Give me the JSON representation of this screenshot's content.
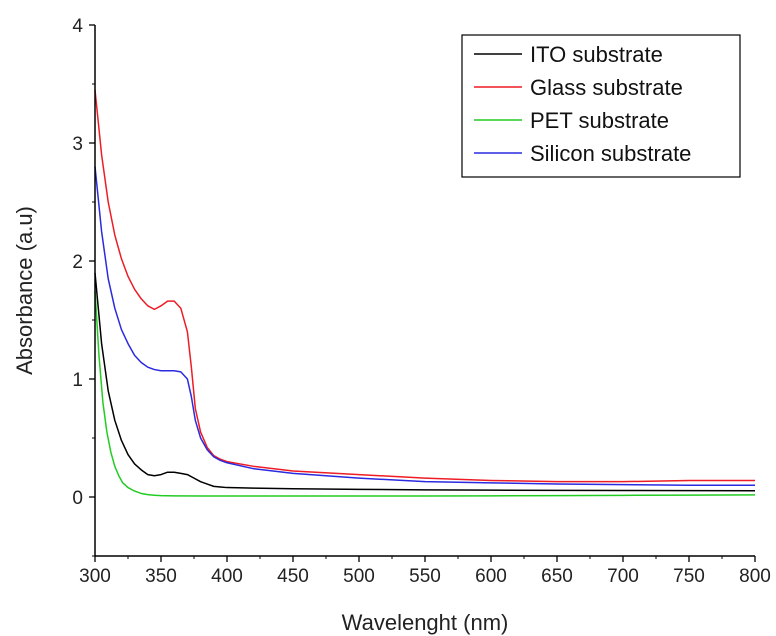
{
  "chart_data": {
    "type": "line",
    "title": "",
    "xlabel": "Wavelenght (nm)",
    "ylabel": "Absorbance (a.u)",
    "xlim": [
      300,
      800
    ],
    "ylim": [
      -0.5,
      4
    ],
    "xticks": [
      300,
      350,
      400,
      450,
      500,
      550,
      600,
      650,
      700,
      750,
      800
    ],
    "yticks": [
      0,
      1,
      2,
      3,
      4
    ],
    "grid": false,
    "legend": {
      "position": "top-right"
    },
    "series": [
      {
        "name": "ITO substrate",
        "color": "#000000",
        "x": [
          300,
          305,
          310,
          315,
          320,
          325,
          330,
          335,
          340,
          345,
          350,
          355,
          360,
          365,
          370,
          375,
          380,
          385,
          390,
          395,
          400,
          420,
          450,
          500,
          550,
          600,
          650,
          700,
          750,
          800
        ],
        "y": [
          1.9,
          1.3,
          0.9,
          0.65,
          0.48,
          0.36,
          0.28,
          0.23,
          0.19,
          0.18,
          0.19,
          0.21,
          0.21,
          0.2,
          0.19,
          0.16,
          0.13,
          0.11,
          0.09,
          0.085,
          0.08,
          0.075,
          0.07,
          0.065,
          0.06,
          0.058,
          0.056,
          0.055,
          0.054,
          0.053
        ]
      },
      {
        "name": "Glass substrate",
        "color": "#ee1c24",
        "x": [
          300,
          305,
          310,
          315,
          320,
          325,
          330,
          335,
          340,
          345,
          350,
          355,
          360,
          365,
          370,
          373,
          376,
          380,
          385,
          390,
          395,
          400,
          420,
          450,
          500,
          550,
          600,
          650,
          700,
          750,
          800
        ],
        "y": [
          3.45,
          2.9,
          2.5,
          2.22,
          2.02,
          1.87,
          1.76,
          1.68,
          1.62,
          1.59,
          1.62,
          1.66,
          1.66,
          1.6,
          1.4,
          1.1,
          0.75,
          0.55,
          0.42,
          0.35,
          0.32,
          0.3,
          0.26,
          0.22,
          0.19,
          0.16,
          0.14,
          0.13,
          0.13,
          0.14,
          0.14
        ]
      },
      {
        "name": "PET substrate",
        "color": "#22cc22",
        "x": [
          300,
          303,
          306,
          309,
          312,
          315,
          318,
          321,
          325,
          330,
          335,
          340,
          345,
          350,
          360,
          380,
          400,
          450,
          500,
          550,
          600,
          650,
          700,
          750,
          800
        ],
        "y": [
          1.75,
          1.2,
          0.8,
          0.55,
          0.38,
          0.26,
          0.18,
          0.12,
          0.08,
          0.05,
          0.03,
          0.02,
          0.015,
          0.012,
          0.01,
          0.008,
          0.008,
          0.008,
          0.008,
          0.009,
          0.01,
          0.012,
          0.014,
          0.016,
          0.018
        ]
      },
      {
        "name": "Silicon substrate",
        "color": "#2a2ae0",
        "x": [
          300,
          305,
          310,
          315,
          320,
          325,
          330,
          335,
          340,
          345,
          350,
          355,
          360,
          365,
          370,
          373,
          376,
          380,
          385,
          390,
          395,
          400,
          420,
          450,
          500,
          550,
          600,
          650,
          700,
          750,
          800
        ],
        "y": [
          2.8,
          2.25,
          1.85,
          1.6,
          1.42,
          1.3,
          1.2,
          1.14,
          1.1,
          1.08,
          1.07,
          1.07,
          1.07,
          1.06,
          1.0,
          0.85,
          0.65,
          0.5,
          0.4,
          0.34,
          0.31,
          0.29,
          0.24,
          0.2,
          0.16,
          0.13,
          0.12,
          0.11,
          0.105,
          0.1,
          0.1
        ]
      }
    ]
  }
}
